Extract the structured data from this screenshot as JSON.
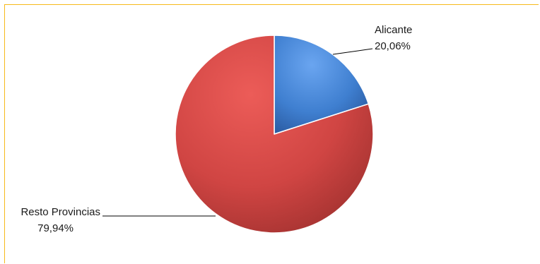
{
  "chart_data": {
    "type": "pie",
    "title": "",
    "slices": [
      {
        "label": "Alicante",
        "value": 20.06,
        "display": "20,06%",
        "color": "#3f7fd0"
      },
      {
        "label": "Resto Provincias",
        "value": 79.94,
        "display": "79,94%",
        "color": "#d04543"
      }
    ],
    "legend": "none",
    "start_angle": "12 o'clock, clockwise",
    "frame_color": "#f6b91a"
  }
}
